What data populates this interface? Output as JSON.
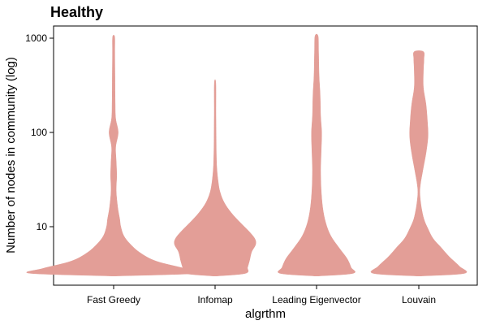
{
  "chart_data": {
    "type": "violin",
    "title": "Healthy",
    "xlabel": "algrthm",
    "ylabel": "Number of nodes in community (log)",
    "y_scale": "log",
    "ylim": [
      2.5,
      1500
    ],
    "y_ticks": [
      {
        "value": 10,
        "label": "10"
      },
      {
        "value": 100,
        "label": "100"
      },
      {
        "value": 1000,
        "label": "1000"
      }
    ],
    "fill_color": "#e39e97",
    "grid": false,
    "legend": "none",
    "categories": [
      "Fast Greedy",
      "Infomap",
      "Leading Eigenvector",
      "Louvain"
    ],
    "violins": [
      {
        "category": "Fast Greedy",
        "min": 3,
        "max": 1030,
        "profile": [
          [
            3,
            0.02
          ],
          [
            3.2,
            0.82
          ],
          [
            3.6,
            0.7
          ],
          [
            4.3,
            0.42
          ],
          [
            5.3,
            0.26
          ],
          [
            6.6,
            0.16
          ],
          [
            8.0,
            0.1
          ],
          [
            10,
            0.07
          ],
          [
            12,
            0.06
          ],
          [
            16,
            0.04
          ],
          [
            24,
            0.025
          ],
          [
            35,
            0.03
          ],
          [
            50,
            0.025
          ],
          [
            70,
            0.02
          ],
          [
            100,
            0.045
          ],
          [
            140,
            0.02
          ],
          [
            200,
            0.015
          ],
          [
            400,
            0.013
          ],
          [
            700,
            0.011
          ],
          [
            1030,
            0.01
          ]
        ]
      },
      {
        "category": "Infomap",
        "min": 3,
        "max": 330,
        "profile": [
          [
            3,
            0.02
          ],
          [
            3.2,
            0.3
          ],
          [
            3.7,
            0.32
          ],
          [
            4.4,
            0.34
          ],
          [
            5.4,
            0.36
          ],
          [
            6.5,
            0.4
          ],
          [
            7.5,
            0.39
          ],
          [
            9.0,
            0.33
          ],
          [
            11,
            0.25
          ],
          [
            14,
            0.16
          ],
          [
            18,
            0.09
          ],
          [
            23,
            0.05
          ],
          [
            30,
            0.03
          ],
          [
            45,
            0.015
          ],
          [
            80,
            0.01
          ],
          [
            150,
            0.008
          ],
          [
            330,
            0.007
          ]
        ]
      },
      {
        "category": "Leading Eigenvector",
        "min": 3,
        "max": 1050,
        "profile": [
          [
            3,
            0.02
          ],
          [
            3.2,
            0.36
          ],
          [
            3.7,
            0.34
          ],
          [
            4.6,
            0.3
          ],
          [
            6.0,
            0.22
          ],
          [
            8.0,
            0.14
          ],
          [
            11,
            0.09
          ],
          [
            16,
            0.06
          ],
          [
            25,
            0.045
          ],
          [
            40,
            0.04
          ],
          [
            60,
            0.045
          ],
          [
            100,
            0.05
          ],
          [
            150,
            0.04
          ],
          [
            250,
            0.035
          ],
          [
            400,
            0.025
          ],
          [
            700,
            0.02
          ],
          [
            1050,
            0.015
          ]
        ]
      },
      {
        "category": "Louvain",
        "min": 3,
        "max": 720,
        "profile": [
          [
            3,
            0.02
          ],
          [
            3.2,
            0.45
          ],
          [
            3.8,
            0.4
          ],
          [
            4.8,
            0.3
          ],
          [
            6.0,
            0.22
          ],
          [
            7.5,
            0.14
          ],
          [
            9.5,
            0.09
          ],
          [
            12,
            0.05
          ],
          [
            16,
            0.025
          ],
          [
            22,
            0.01
          ],
          [
            28,
            0.015
          ],
          [
            40,
            0.04
          ],
          [
            60,
            0.07
          ],
          [
            90,
            0.09
          ],
          [
            130,
            0.085
          ],
          [
            200,
            0.07
          ],
          [
            300,
            0.045
          ],
          [
            450,
            0.045
          ],
          [
            600,
            0.05
          ],
          [
            720,
            0.045
          ]
        ]
      }
    ]
  }
}
